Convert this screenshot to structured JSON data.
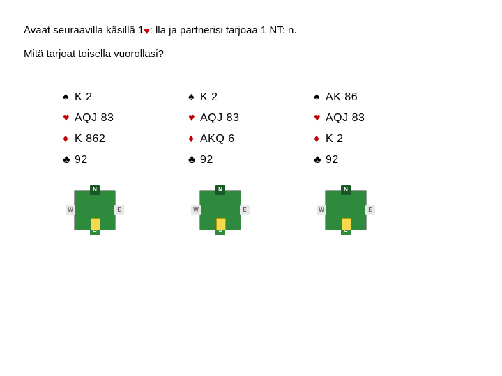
{
  "intro": {
    "prefix": "Avaat seuraavilla käsillä 1",
    "suffix": ": lla ja partnerisi tarjoaa 1 NT: n."
  },
  "question": "Mitä tarjoat toisella vuorollasi?",
  "suits": {
    "spade": "♠",
    "heart": "♥",
    "diamond": "♦",
    "club": "♣"
  },
  "suitColors": {
    "spade": "#000000",
    "heart": "#c00000",
    "diamond": "#c00000",
    "club": "#000000"
  },
  "compass": {
    "n": "N",
    "s": "S",
    "e": "E",
    "w": "W"
  },
  "hands": [
    {
      "spades": "K 2",
      "hearts": "AQJ 83",
      "diamonds": "K 862",
      "clubs": "92"
    },
    {
      "spades": "K 2",
      "hearts": "AQJ 83",
      "diamonds": "AKQ 6",
      "clubs": "92"
    },
    {
      "spades": "AK 86",
      "hearts": "AQJ 83",
      "diamonds": "K 2",
      "clubs": "92"
    }
  ],
  "tableColors": {
    "board": "#2e8b3d",
    "nsSeat": "#1a5726",
    "ewSeat": "#e8e8e8",
    "dealerMarker": "#f7d94c"
  },
  "font": {
    "body": 15,
    "cards": 16,
    "seat": 8
  }
}
